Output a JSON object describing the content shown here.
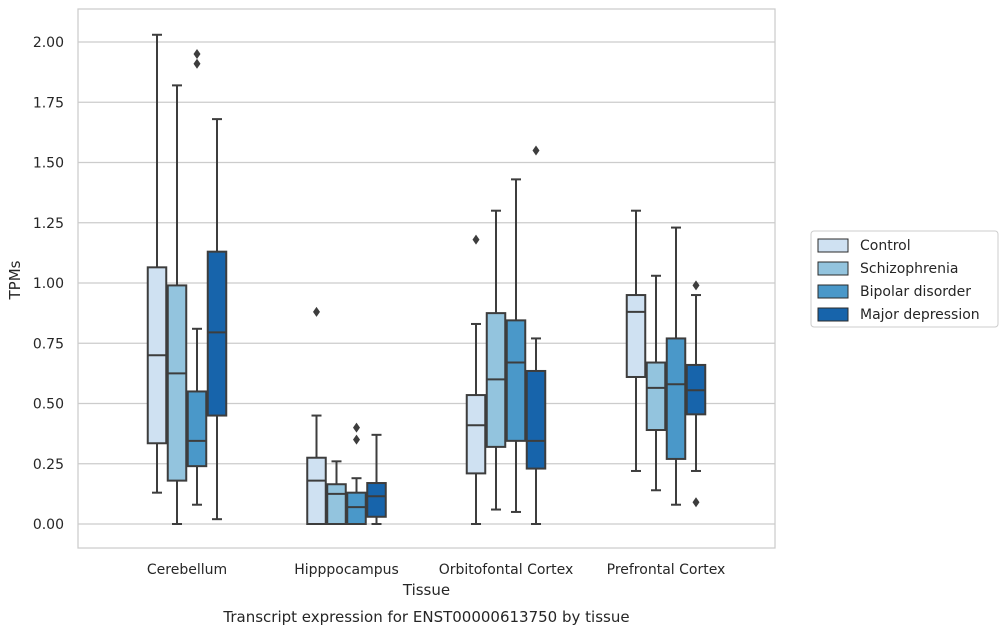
{
  "chart_data": {
    "type": "box",
    "title": "Transcript expression for ENST00000613750 by tissue",
    "xlabel": "Tissue",
    "ylabel": "TPMs",
    "ylim": [
      -0.1,
      2.15
    ],
    "yticks": [
      "0.00",
      "0.25",
      "0.50",
      "0.75",
      "1.00",
      "1.25",
      "1.50",
      "1.75",
      "2.00"
    ],
    "ytick_values": [
      0,
      0.25,
      0.5,
      0.75,
      1.0,
      1.25,
      1.5,
      1.75,
      2.0
    ],
    "categories": [
      "Cerebellum",
      "Hipppocampus",
      "Orbitofontal Cortex",
      "Prefrontal Cortex"
    ],
    "grid": "horizontal",
    "legend_position": "right",
    "series": [
      {
        "name": "Control",
        "color": "#cfe1f2",
        "boxes": [
          {
            "min": 0.13,
            "q1": 0.335,
            "median": 0.7,
            "q3": 1.065,
            "max": 2.03,
            "outliers": []
          },
          {
            "min": 0.0,
            "q1": 0.0,
            "median": 0.18,
            "q3": 0.275,
            "max": 0.45,
            "outliers": [
              0.88
            ]
          },
          {
            "min": 0.0,
            "q1": 0.21,
            "median": 0.41,
            "q3": 0.535,
            "max": 0.83,
            "outliers": [
              1.18
            ]
          },
          {
            "min": 0.22,
            "q1": 0.61,
            "median": 0.88,
            "q3": 0.95,
            "max": 1.3,
            "outliers": []
          }
        ]
      },
      {
        "name": "Schizophrenia",
        "color": "#93c4de",
        "boxes": [
          {
            "min": 0.0,
            "q1": 0.18,
            "median": 0.625,
            "q3": 0.99,
            "max": 1.82,
            "outliers": []
          },
          {
            "min": 0.0,
            "q1": 0.0,
            "median": 0.125,
            "q3": 0.165,
            "max": 0.26,
            "outliers": []
          },
          {
            "min": 0.06,
            "q1": 0.32,
            "median": 0.6,
            "q3": 0.875,
            "max": 1.3,
            "outliers": []
          },
          {
            "min": 0.14,
            "q1": 0.39,
            "median": 0.565,
            "q3": 0.67,
            "max": 1.03,
            "outliers": []
          }
        ]
      },
      {
        "name": "Bipolar disorder",
        "color": "#4a98c9",
        "boxes": [
          {
            "min": 0.08,
            "q1": 0.24,
            "median": 0.345,
            "q3": 0.55,
            "max": 0.81,
            "outliers": [
              1.91,
              1.95
            ]
          },
          {
            "min": 0.0,
            "q1": 0.0,
            "median": 0.07,
            "q3": 0.13,
            "max": 0.19,
            "outliers": [
              0.35,
              0.4
            ]
          },
          {
            "min": 0.05,
            "q1": 0.345,
            "median": 0.67,
            "q3": 0.845,
            "max": 1.43,
            "outliers": []
          },
          {
            "min": 0.08,
            "q1": 0.27,
            "median": 0.58,
            "q3": 0.77,
            "max": 1.23,
            "outliers": []
          }
        ]
      },
      {
        "name": "Major depression",
        "color": "#1764ab",
        "boxes": [
          {
            "min": 0.02,
            "q1": 0.45,
            "median": 0.795,
            "q3": 1.13,
            "max": 1.68,
            "outliers": []
          },
          {
            "min": 0.0,
            "q1": 0.03,
            "median": 0.115,
            "q3": 0.17,
            "max": 0.37,
            "outliers": []
          },
          {
            "min": 0.0,
            "q1": 0.23,
            "median": 0.345,
            "q3": 0.635,
            "max": 0.77,
            "outliers": [
              1.55
            ]
          },
          {
            "min": 0.22,
            "q1": 0.455,
            "median": 0.555,
            "q3": 0.66,
            "max": 0.95,
            "outliers": [
              0.09,
              0.99
            ]
          }
        ]
      }
    ]
  }
}
